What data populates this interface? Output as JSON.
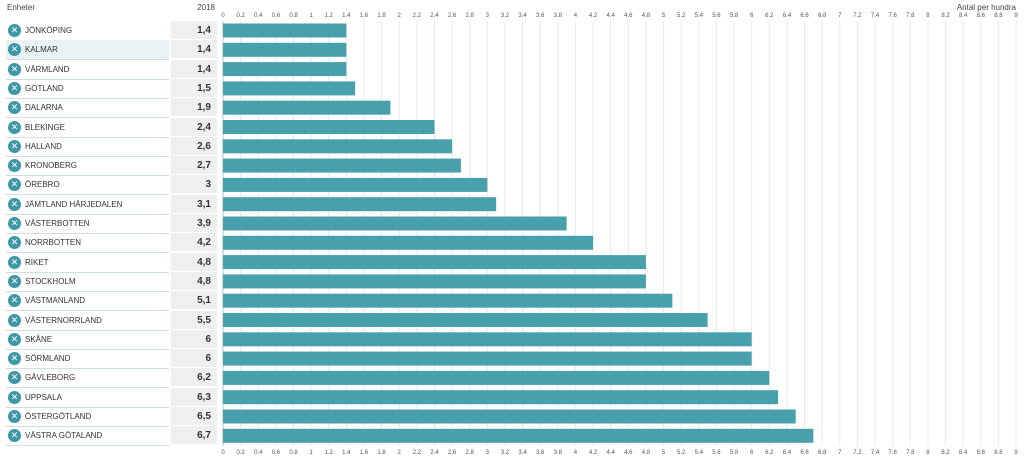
{
  "header": {
    "units_label": "Enheter",
    "year_label": "2018",
    "unit_right": "Antal per hundra"
  },
  "remove_icon": "close-icon",
  "colors": {
    "bar": "#48a0ad",
    "remove_button": "#3e97a7",
    "grid": "#e6eaeb"
  },
  "rows": [
    {
      "name": "JÖNKÖPING",
      "value_label": "1,4"
    },
    {
      "name": "KALMAR",
      "value_label": "1,4"
    },
    {
      "name": "VÄRMLAND",
      "value_label": "1,4"
    },
    {
      "name": "GOTLAND",
      "value_label": "1,5"
    },
    {
      "name": "DALARNA",
      "value_label": "1,9"
    },
    {
      "name": "BLEKINGE",
      "value_label": "2,4"
    },
    {
      "name": "HALLAND",
      "value_label": "2,6"
    },
    {
      "name": "KRONOBERG",
      "value_label": "2,7"
    },
    {
      "name": "ÖREBRO",
      "value_label": "3"
    },
    {
      "name": "JÄMTLAND HÄRJEDALEN",
      "value_label": "3,1"
    },
    {
      "name": "VÄSTERBOTTEN",
      "value_label": "3,9"
    },
    {
      "name": "NORRBOTTEN",
      "value_label": "4,2"
    },
    {
      "name": "RIKET",
      "value_label": "4,8"
    },
    {
      "name": "STOCKHOLM",
      "value_label": "4,8"
    },
    {
      "name": "VÄSTMANLAND",
      "value_label": "5,1"
    },
    {
      "name": "VÄSTERNORRLAND",
      "value_label": "5,5"
    },
    {
      "name": "SKÅNE",
      "value_label": "6"
    },
    {
      "name": "SÖRMLAND",
      "value_label": "6"
    },
    {
      "name": "GÄVLEBORG",
      "value_label": "6,2"
    },
    {
      "name": "UPPSALA",
      "value_label": "6,3"
    },
    {
      "name": "ÖSTERGÖTLAND",
      "value_label": "6,5"
    },
    {
      "name": "VÄSTRA GÖTALAND",
      "value_label": "6,7"
    }
  ],
  "chart_data": {
    "type": "bar",
    "orientation": "horizontal",
    "categories": [
      "JÖNKÖPING",
      "KALMAR",
      "VÄRMLAND",
      "GOTLAND",
      "DALARNA",
      "BLEKINGE",
      "HALLAND",
      "KRONOBERG",
      "ÖREBRO",
      "JÄMTLAND HÄRJEDALEN",
      "VÄSTERBOTTEN",
      "NORRBOTTEN",
      "RIKET",
      "STOCKHOLM",
      "VÄSTMANLAND",
      "VÄSTERNORRLAND",
      "SKÅNE",
      "SÖRMLAND",
      "GÄVLEBORG",
      "UPPSALA",
      "ÖSTERGÖTLAND",
      "VÄSTRA GÖTALAND"
    ],
    "values": [
      1.4,
      1.4,
      1.4,
      1.5,
      1.9,
      2.4,
      2.6,
      2.7,
      3,
      3.1,
      3.9,
      4.2,
      4.8,
      4.8,
      5.1,
      5.5,
      6,
      6,
      6.2,
      6.3,
      6.5,
      6.7
    ],
    "xlim": [
      0,
      9
    ],
    "xticks": [
      "0",
      "0.2",
      "0.4",
      "0.6",
      "0.8",
      "1",
      "1.2",
      "1.4",
      "1.6",
      "1.8",
      "2",
      "2.2",
      "2.4",
      "2.6",
      "2.8",
      "3",
      "3.2",
      "3.4",
      "3.6",
      "3.8",
      "4",
      "4.2",
      "4.4",
      "4.6",
      "4.8",
      "5",
      "5.2",
      "5.4",
      "5.6",
      "5.8",
      "6",
      "6.2",
      "6.4",
      "6.6",
      "6.8",
      "7",
      "7.2",
      "7.4",
      "7.6",
      "7.8",
      "8",
      "8.2",
      "8.4",
      "8.6",
      "8.8",
      "9"
    ],
    "xlabel": "Antal per hundra",
    "grid": true
  }
}
